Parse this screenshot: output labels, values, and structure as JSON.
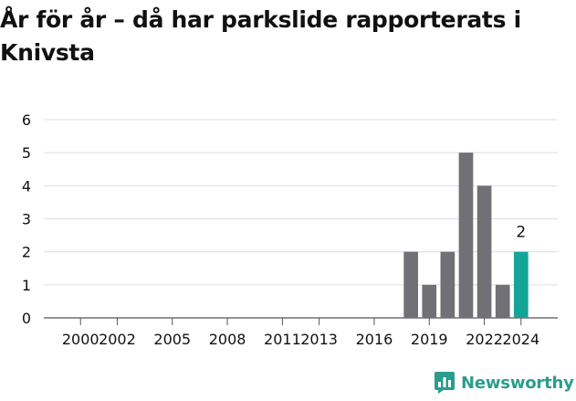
{
  "colors": {
    "bar": "#717077",
    "highlight": "#13a597",
    "grid": "#dddddd",
    "axis": "#555555",
    "text": "#111111",
    "brand": "#2a9d8f"
  },
  "logo": {
    "icon": "newsworthy-chart-bubble-icon",
    "text": "Newsworthy"
  },
  "chart_data": {
    "type": "bar",
    "title": "År för år – då har parkslide rapporterats i Knivsta",
    "xlabel": "",
    "ylabel": "",
    "ylim": [
      0,
      6
    ],
    "yticks": [
      0,
      1,
      2,
      3,
      4,
      5,
      6
    ],
    "xlim": [
      1998,
      2026
    ],
    "xticks": [
      "2000",
      "2002",
      "2005",
      "2008",
      "2011",
      "2013",
      "2016",
      "2019",
      "2022",
      "2024"
    ],
    "grid": true,
    "legend": "none",
    "series": [
      {
        "x": [
          2018,
          2019,
          2020,
          2021,
          2022,
          2023,
          2024
        ],
        "values": [
          2,
          1,
          2,
          5,
          4,
          1,
          2
        ]
      }
    ],
    "highlight_year": 2024,
    "annotations": [
      {
        "x": 2024,
        "text": "2"
      }
    ]
  }
}
